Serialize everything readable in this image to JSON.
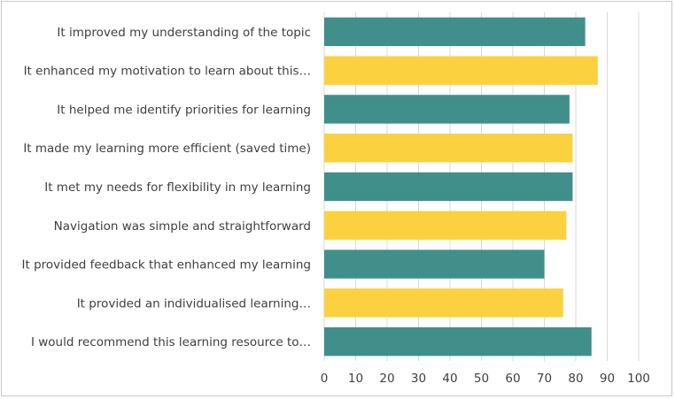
{
  "chart_data": {
    "type": "bar",
    "orientation": "horizontal",
    "title": "",
    "xlabel": "",
    "ylabel": "",
    "categories": [
      "It improved my understanding of the topic",
      "It enhanced my motivation to learn about this…",
      "It helped me identify priorities for learning",
      "It made my learning more efficient (saved time)",
      "It met my needs for flexibility in my learning",
      "Navigation was simple and straightforward",
      "It provided feedback that enhanced my learning",
      "It provided an individualised learning…",
      "I would recommend this learning resource to…"
    ],
    "values": [
      83,
      87,
      78,
      79,
      79,
      77,
      70,
      76,
      85
    ],
    "bar_colors": [
      "#408f8a",
      "#fbd13f",
      "#408f8a",
      "#fbd13f",
      "#408f8a",
      "#fbd13f",
      "#408f8a",
      "#fbd13f",
      "#408f8a"
    ],
    "xlim": [
      0,
      100
    ],
    "xticks": [
      "0",
      "10",
      "20",
      "30",
      "40",
      "50",
      "60",
      "70",
      "80",
      "90",
      "100"
    ],
    "grid": true,
    "legend": false
  }
}
